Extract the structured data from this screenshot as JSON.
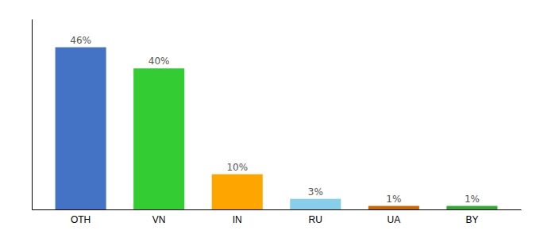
{
  "chart_data": {
    "type": "bar",
    "categories": [
      "OTH",
      "VN",
      "IN",
      "RU",
      "UA",
      "BY"
    ],
    "values": [
      46,
      40,
      10,
      3,
      1,
      1
    ],
    "value_labels": [
      "46%",
      "40%",
      "10%",
      "3%",
      "1%",
      "1%"
    ],
    "colors": [
      "#4472C4",
      "#33CC33",
      "#FFA500",
      "#87CEEB",
      "#CC6600",
      "#33AA33"
    ],
    "ylim": [
      0,
      54
    ],
    "data_labels": true,
    "tick_labels": "x",
    "grid": false
  }
}
